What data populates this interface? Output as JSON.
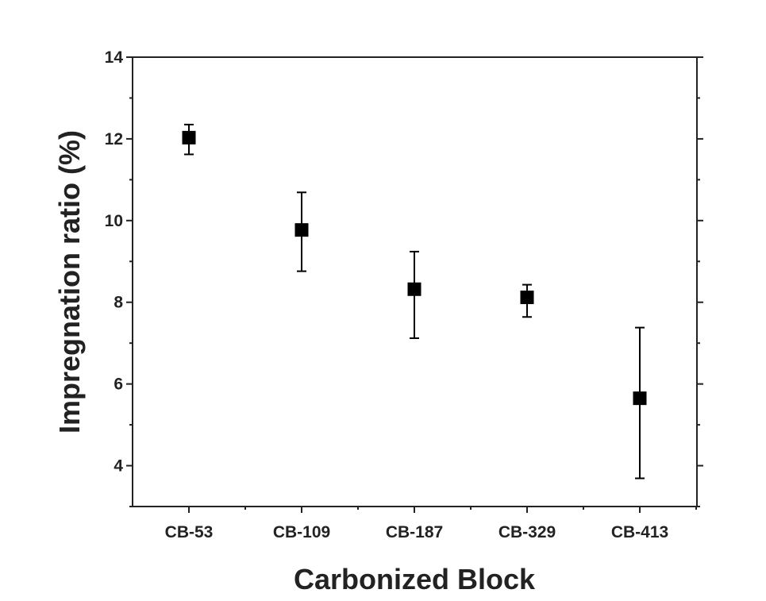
{
  "chart_data": {
    "type": "scatter",
    "title": "",
    "xlabel": "Carbonized Block",
    "ylabel": "Impregnation ratio (%)",
    "categories": [
      "CB-53",
      "CB-109",
      "CB-187",
      "CB-329",
      "CB-413"
    ],
    "values": [
      12.03,
      9.77,
      8.32,
      8.12,
      5.65
    ],
    "error_low": [
      11.62,
      8.76,
      7.12,
      7.64,
      3.69
    ],
    "error_high": [
      12.35,
      10.69,
      9.24,
      8.43,
      7.38
    ],
    "ylim": [
      3,
      14
    ],
    "yticks": [
      4,
      6,
      8,
      10,
      12,
      14
    ],
    "marker": "square",
    "color": "#000000",
    "grid": false,
    "legend": false
  }
}
